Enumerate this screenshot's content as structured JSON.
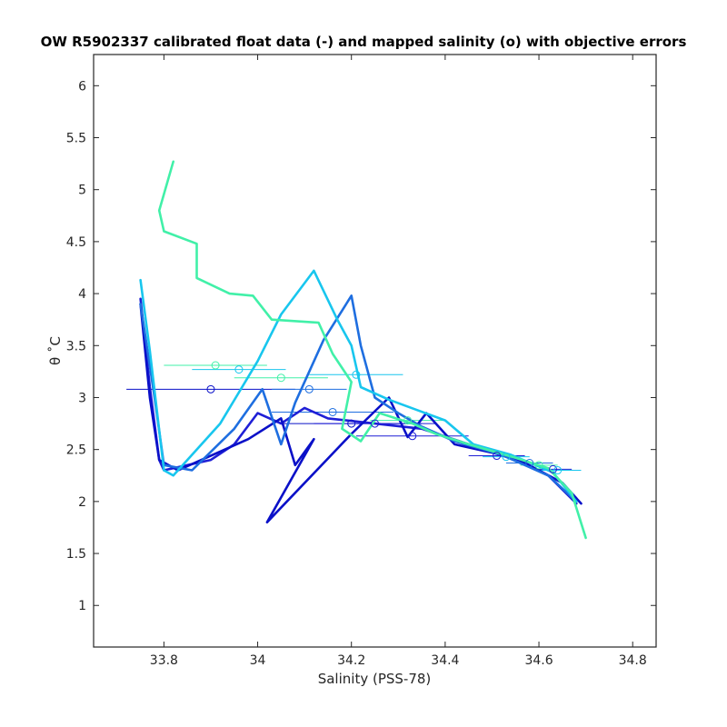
{
  "chart_data": {
    "type": "line",
    "title": "OW R5902337 calibrated float data (-) and mapped salinity (o) with objective errors",
    "xlabel": "Salinity (PSS-78)",
    "ylabel": "θ ˚C",
    "xlim": [
      33.65,
      34.85
    ],
    "ylim": [
      0.6,
      6.3
    ],
    "xticks": [
      33.8,
      34,
      34.2,
      34.4,
      34.6,
      34.8
    ],
    "xtick_labels": [
      "33.8",
      "34",
      "34.2",
      "34.4",
      "34.6",
      "34.8"
    ],
    "yticks": [
      1,
      1.5,
      2,
      2.5,
      3,
      3.5,
      4,
      4.5,
      5,
      5.5,
      6
    ],
    "ytick_labels": [
      "1",
      "1.5",
      "2",
      "2.5",
      "3",
      "3.5",
      "4",
      "4.5",
      "5",
      "5.5",
      "6"
    ],
    "grid": false,
    "series": [
      {
        "color": "#1f1fd6",
        "points": [
          [
            33.75,
            3.95
          ],
          [
            33.77,
            3.1
          ],
          [
            33.79,
            2.4
          ],
          [
            33.8,
            2.3
          ],
          [
            33.9,
            2.4
          ],
          [
            33.95,
            2.55
          ],
          [
            34.0,
            2.85
          ],
          [
            34.05,
            2.75
          ],
          [
            34.1,
            2.9
          ],
          [
            34.15,
            2.8
          ],
          [
            34.25,
            2.75
          ],
          [
            34.35,
            2.7
          ],
          [
            34.45,
            2.55
          ],
          [
            34.55,
            2.4
          ],
          [
            34.62,
            2.25
          ],
          [
            34.68,
            1.98
          ]
        ]
      },
      {
        "color": "#0a10c8",
        "points": [
          [
            33.75,
            3.9
          ],
          [
            33.77,
            3.0
          ],
          [
            33.79,
            2.4
          ],
          [
            33.83,
            2.3
          ],
          [
            33.88,
            2.4
          ],
          [
            33.98,
            2.6
          ],
          [
            34.05,
            2.8
          ],
          [
            34.08,
            2.35
          ],
          [
            34.12,
            2.6
          ],
          [
            34.02,
            1.8
          ],
          [
            34.2,
            2.65
          ],
          [
            34.28,
            3.0
          ],
          [
            34.32,
            2.62
          ],
          [
            34.36,
            2.85
          ],
          [
            34.42,
            2.55
          ],
          [
            34.55,
            2.42
          ],
          [
            34.65,
            2.18
          ],
          [
            34.69,
            1.98
          ]
        ]
      },
      {
        "color": "#1e6ee0",
        "points": [
          [
            33.75,
            3.9
          ],
          [
            33.78,
            3.0
          ],
          [
            33.8,
            2.35
          ],
          [
            33.86,
            2.3
          ],
          [
            33.95,
            2.7
          ],
          [
            34.01,
            3.08
          ],
          [
            34.05,
            2.55
          ],
          [
            34.08,
            2.95
          ],
          [
            34.14,
            3.55
          ],
          [
            34.2,
            3.98
          ],
          [
            34.22,
            3.5
          ],
          [
            34.25,
            3.0
          ],
          [
            34.3,
            2.85
          ],
          [
            34.35,
            2.72
          ],
          [
            34.42,
            2.58
          ],
          [
            34.52,
            2.45
          ],
          [
            34.62,
            2.25
          ],
          [
            34.68,
            2.0
          ]
        ]
      },
      {
        "color": "#18c6ee",
        "points": [
          [
            33.75,
            4.13
          ],
          [
            33.77,
            3.45
          ],
          [
            33.8,
            2.3
          ],
          [
            33.82,
            2.25
          ],
          [
            33.92,
            2.75
          ],
          [
            34.0,
            3.35
          ],
          [
            34.05,
            3.8
          ],
          [
            34.12,
            4.22
          ],
          [
            34.17,
            3.75
          ],
          [
            34.2,
            3.5
          ],
          [
            34.22,
            3.1
          ],
          [
            34.28,
            2.98
          ],
          [
            34.34,
            2.88
          ],
          [
            34.4,
            2.78
          ],
          [
            34.46,
            2.55
          ],
          [
            34.54,
            2.45
          ],
          [
            34.63,
            2.28
          ],
          [
            34.68,
            2.0
          ]
        ]
      },
      {
        "color": "#41f0a8",
        "points": [
          [
            33.82,
            5.27
          ],
          [
            33.79,
            4.8
          ],
          [
            33.8,
            4.6
          ],
          [
            33.87,
            4.48
          ],
          [
            33.87,
            4.15
          ],
          [
            33.94,
            4.0
          ],
          [
            33.99,
            3.98
          ],
          [
            34.03,
            3.75
          ],
          [
            34.13,
            3.72
          ],
          [
            34.16,
            3.42
          ],
          [
            34.2,
            3.15
          ],
          [
            34.18,
            2.7
          ],
          [
            34.22,
            2.58
          ],
          [
            34.26,
            2.85
          ],
          [
            34.33,
            2.75
          ],
          [
            34.38,
            2.65
          ],
          [
            34.45,
            2.55
          ],
          [
            34.55,
            2.42
          ],
          [
            34.62,
            2.32
          ],
          [
            34.67,
            2.08
          ],
          [
            34.7,
            1.65
          ]
        ]
      }
    ],
    "mapped_points": [
      {
        "x": 33.91,
        "y": 3.31,
        "err": 0.11,
        "color": "#41f0a8"
      },
      {
        "x": 33.96,
        "y": 3.27,
        "err": 0.1,
        "color": "#18c6ee"
      },
      {
        "x": 34.05,
        "y": 3.19,
        "err": 0.1,
        "color": "#41f0a8"
      },
      {
        "x": 34.21,
        "y": 3.22,
        "err": 0.1,
        "color": "#18c6ee"
      },
      {
        "x": 33.9,
        "y": 3.08,
        "err": 0.18,
        "color": "#0a10c8"
      },
      {
        "x": 34.11,
        "y": 3.08,
        "err": 0.08,
        "color": "#1e6ee0"
      },
      {
        "x": 34.16,
        "y": 2.86,
        "err": 0.13,
        "color": "#1e6ee0"
      },
      {
        "x": 34.2,
        "y": 2.75,
        "err": 0.15,
        "color": "#0a10c8"
      },
      {
        "x": 34.25,
        "y": 2.75,
        "err": 0.13,
        "color": "#1f1fd6"
      },
      {
        "x": 34.32,
        "y": 2.78,
        "err": 0.08,
        "color": "#41f0a8"
      },
      {
        "x": 34.33,
        "y": 2.63,
        "err": 0.12,
        "color": "#1f1fd6"
      },
      {
        "x": 34.51,
        "y": 2.44,
        "err": 0.06,
        "color": "#1f1fd6"
      },
      {
        "x": 34.53,
        "y": 2.43,
        "err": 0.05,
        "color": "#18c6ee"
      },
      {
        "x": 34.58,
        "y": 2.37,
        "err": 0.05,
        "color": "#1e6ee0"
      },
      {
        "x": 34.6,
        "y": 2.35,
        "err": 0.04,
        "color": "#41f0a8"
      },
      {
        "x": 34.63,
        "y": 2.31,
        "err": 0.04,
        "color": "#1f1fd6"
      },
      {
        "x": 34.64,
        "y": 2.3,
        "err": 0.05,
        "color": "#18c6ee"
      }
    ]
  }
}
